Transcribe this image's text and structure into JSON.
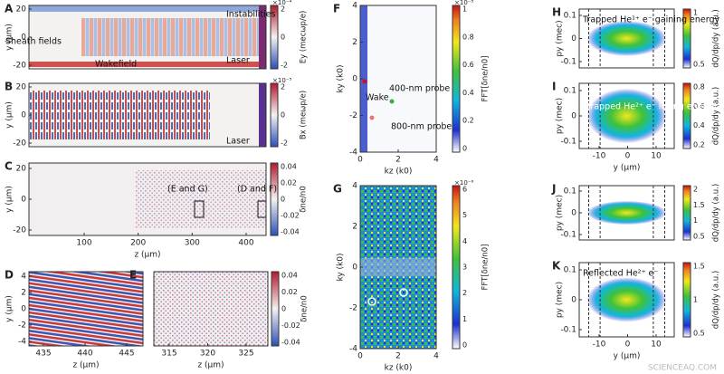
{
  "panels": [
    {
      "label": "A",
      "ylabel": "y (μm)",
      "yticks": [
        "20",
        "0",
        "-20"
      ],
      "xticks": [],
      "colorbar": {
        "ticks": [
          "2",
          "0",
          "-2"
        ],
        "exponent": "×10⁻⁴",
        "label": "Ey (mecωp/e)"
      },
      "notes": [
        "Sheath fields",
        "Instabilities",
        "Wakefield",
        "Laser"
      ]
    },
    {
      "label": "B",
      "ylabel": "y (μm)",
      "yticks": [
        "20",
        "0",
        "-20"
      ],
      "xticks": [],
      "colorbar": {
        "ticks": [
          "2",
          "0",
          "-2"
        ],
        "exponent": "×10⁻⁵",
        "label": "Bx (meωp/e)"
      },
      "notes": [
        "Laser"
      ]
    },
    {
      "label": "C",
      "ylabel": "y (μm)",
      "xlabel": "z (μm)",
      "yticks": [
        "20",
        "0",
        "-20"
      ],
      "xticks": [
        "100",
        "200",
        "300",
        "400"
      ],
      "colorbar": {
        "ticks": [
          "0.04",
          "0.02",
          "0",
          "-0.02",
          "-0.04"
        ],
        "label": "δne/n0"
      },
      "notes": [
        "(E and G)",
        "(D and F)"
      ]
    },
    {
      "label": "D",
      "ylabel": "y (μm)",
      "xlabel": "z (μm)",
      "yticks": [
        "4",
        "2",
        "0",
        "-2",
        "-4"
      ],
      "xticks": [
        "435",
        "440",
        "445"
      ],
      "notes": []
    },
    {
      "label": "E",
      "xlabel": "z (μm)",
      "yticks": [],
      "xticks": [
        "315",
        "320",
        "325"
      ],
      "colorbar": {
        "ticks": [
          "0.04",
          "0.02",
          "0",
          "-0.02",
          "-0.04"
        ],
        "label": "δne/n0"
      },
      "notes": []
    },
    {
      "label": "F",
      "ylabel": "ky (k0)",
      "xlabel": "kz (k0)",
      "yticks": [
        "4",
        "2",
        "0",
        "-2",
        "-4"
      ],
      "xticks": [
        "0",
        "2",
        "4"
      ],
      "colorbar": {
        "ticks": [
          "1",
          "0.8",
          "0.6",
          "0.4",
          "0.2",
          "0"
        ],
        "exponent": "×10⁻⁵",
        "label": "FFT[δne/n0]"
      },
      "notes": [
        "Wake",
        "400-nm probe",
        "800-nm probe"
      ]
    },
    {
      "label": "G",
      "ylabel": "ky (k0)",
      "xlabel": "kz (k0)",
      "yticks": [
        "4",
        "2",
        "0",
        "-2",
        "-4"
      ],
      "xticks": [
        "0",
        "2",
        "4"
      ],
      "colorbar": {
        "ticks": [
          "6",
          "5",
          "4",
          "3",
          "2",
          "1",
          "0"
        ],
        "exponent": "×10⁻⁶",
        "label": "FFT[δne/n0]"
      },
      "notes": []
    },
    {
      "label": "H",
      "ylabel": "py (mec)",
      "yticks": [
        "0.1",
        "0",
        "-0.1"
      ],
      "xticks": [],
      "colorbar": {
        "ticks": [
          "1",
          "0.5"
        ],
        "label": "dQ/dp/dy (a.u.)"
      },
      "notes": [
        "Trapped He¹⁺ e⁻ gaining energy"
      ]
    },
    {
      "label": "I",
      "ylabel": "py (mec)",
      "xlabel": "y (μm)",
      "yticks": [
        "0.1",
        "0",
        "-0.1"
      ],
      "xticks": [
        "-10",
        "0",
        "10"
      ],
      "colorbar": {
        "ticks": [
          "0.8",
          "0.6",
          "0.4",
          "0.2"
        ],
        "label": "dQ/dp/dy (a.u.)"
      },
      "notes": [
        "Trapped He²⁺ e⁻ losing energy"
      ]
    },
    {
      "label": "J",
      "ylabel": "py (mec)",
      "yticks": [
        "0.1",
        "0",
        "-0.1"
      ],
      "xticks": [],
      "colorbar": {
        "ticks": [
          "2",
          "1.5",
          "1",
          "0.5"
        ],
        "label": "dQ/dp/dy (a.u.)"
      },
      "notes": []
    },
    {
      "label": "K",
      "ylabel": "py (mec)",
      "xlabel": "y (μm)",
      "yticks": [
        "0.1",
        "0",
        "-0.1"
      ],
      "xticks": [
        "-10",
        "0",
        "10"
      ],
      "colorbar": {
        "ticks": [
          "1.5",
          "1",
          "0.5"
        ],
        "label": "dQ/dp/dy (a.u.)"
      },
      "notes": [
        "Reflected He²⁺ e⁻"
      ]
    }
  ],
  "credit": "SCIENCEAQ.COM"
}
